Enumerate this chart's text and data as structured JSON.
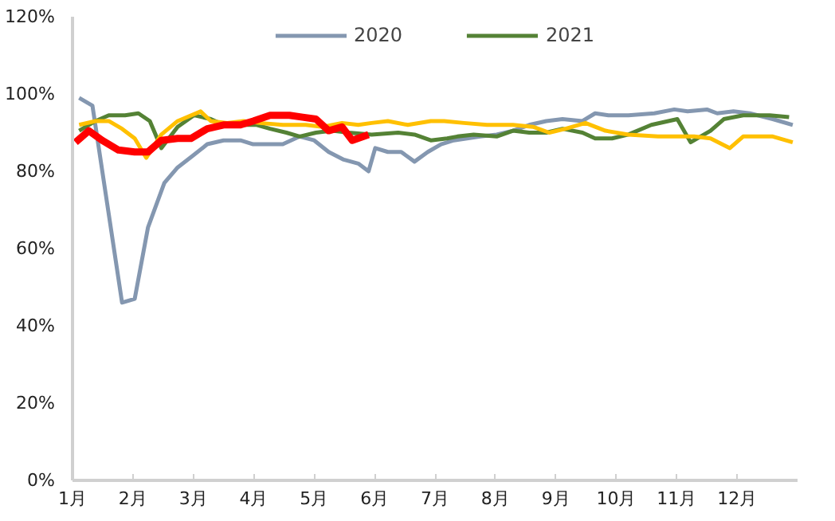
{
  "chart_data": {
    "type": "line",
    "xlim": [
      1,
      13
    ],
    "xticks": [
      {
        "value": 1,
        "label": "1月"
      },
      {
        "value": 2,
        "label": "2月"
      },
      {
        "value": 3,
        "label": "3月"
      },
      {
        "value": 4,
        "label": "4月"
      },
      {
        "value": 5,
        "label": "5月"
      },
      {
        "value": 6,
        "label": "6月"
      },
      {
        "value": 7,
        "label": "7月"
      },
      {
        "value": 8,
        "label": "8月"
      },
      {
        "value": 9,
        "label": "9月"
      },
      {
        "value": 10,
        "label": "10月"
      },
      {
        "value": 11,
        "label": "11月"
      },
      {
        "value": 12,
        "label": "12月"
      }
    ],
    "ylim": [
      0,
      120
    ],
    "yticks": [
      {
        "value": 0,
        "label": "0%"
      },
      {
        "value": 20,
        "label": "20%"
      },
      {
        "value": 40,
        "label": "40%"
      },
      {
        "value": 60,
        "label": "60%"
      },
      {
        "value": 80,
        "label": "80%"
      },
      {
        "value": 100,
        "label": "100%"
      },
      {
        "value": 120,
        "label": "120%"
      }
    ],
    "grid": false,
    "legend": "top",
    "marker": "none",
    "line_style": "solid",
    "series": [
      {
        "name": "2020",
        "color": "#8497b0",
        "x": [
          1.11,
          1.33,
          1.82,
          2.03,
          2.25,
          2.52,
          2.74,
          2.99,
          3.23,
          3.5,
          3.78,
          3.99,
          4.27,
          4.48,
          4.76,
          5.0,
          5.24,
          5.49,
          5.73,
          5.9,
          6.01,
          6.22,
          6.44,
          6.66,
          6.88,
          7.1,
          7.31,
          7.53,
          7.75,
          8.02,
          8.29,
          8.56,
          8.84,
          9.11,
          9.44,
          9.65,
          9.87,
          10.2,
          10.63,
          10.96,
          11.18,
          11.5,
          11.67,
          11.94,
          12.21,
          12.59,
          12.92
        ],
        "values": [
          99,
          97,
          46,
          47,
          65.5,
          77,
          81,
          84,
          87,
          88,
          88,
          87,
          87,
          87,
          89,
          88,
          85,
          83,
          82,
          80,
          86,
          85,
          85,
          82.5,
          85,
          87,
          88,
          88.5,
          89,
          89.5,
          90.5,
          92,
          93,
          93.5,
          93,
          95,
          94.5,
          94.5,
          95,
          96,
          95.5,
          96,
          95,
          95.5,
          95,
          93.5,
          92
        ]
      },
      {
        "name": "2021",
        "color": "#548235",
        "x": [
          1.11,
          1.38,
          1.6,
          1.87,
          2.09,
          2.28,
          2.47,
          2.74,
          3.01,
          3.29,
          3.5,
          3.78,
          4.05,
          4.27,
          4.54,
          4.76,
          5.03,
          5.3,
          5.57,
          5.95,
          6.39,
          6.66,
          6.93,
          7.2,
          7.37,
          7.64,
          8.02,
          8.29,
          8.56,
          8.84,
          9.11,
          9.44,
          9.65,
          9.93,
          10.2,
          10.58,
          11.01,
          11.23,
          11.56,
          11.78,
          12.1,
          12.54,
          12.86
        ],
        "values": [
          90.5,
          93,
          94.5,
          94.5,
          95,
          93,
          86,
          91.5,
          94.5,
          93.5,
          92,
          92,
          92,
          91,
          90,
          89,
          90,
          90.5,
          90,
          89.5,
          90,
          89.5,
          88,
          88.5,
          89,
          89.5,
          89,
          90.5,
          90,
          90,
          91,
          90,
          88.5,
          88.5,
          89.5,
          92,
          93.5,
          87.5,
          90.5,
          93.5,
          94.5,
          94.5,
          94
        ]
      },
      {
        "color": "#ffc000",
        "x": [
          1.11,
          1.38,
          1.6,
          1.82,
          2.03,
          2.22,
          2.47,
          2.74,
          3.12,
          3.29,
          3.56,
          3.83,
          4.1,
          4.48,
          4.86,
          5.14,
          5.46,
          5.73,
          5.95,
          6.22,
          6.55,
          6.93,
          7.15,
          7.48,
          7.86,
          8.29,
          8.62,
          8.89,
          9.16,
          9.49,
          9.82,
          10.2,
          10.69,
          11.01,
          11.29,
          11.56,
          11.88,
          12.1,
          12.59,
          12.92
        ],
        "values": [
          92,
          93,
          93,
          91,
          88.5,
          83.5,
          89.5,
          93,
          95.5,
          93,
          92.5,
          93,
          92.5,
          92,
          92,
          91.5,
          92.5,
          92,
          92.5,
          93,
          92,
          93,
          93,
          92.5,
          92,
          92,
          91.5,
          90,
          91,
          92.5,
          90.5,
          89.5,
          89,
          89,
          89,
          88.5,
          86,
          89,
          89,
          87.5
        ]
      },
      {
        "color": "#ff0000",
        "x": [
          1.05,
          1.27,
          1.49,
          1.76,
          2.03,
          2.25,
          2.47,
          2.74,
          2.96,
          3.23,
          3.5,
          3.78,
          3.99,
          4.27,
          4.59,
          4.81,
          5.03,
          5.24,
          5.46,
          5.63,
          5.9
        ],
        "values": [
          87.5,
          90.5,
          88,
          85.5,
          85,
          85,
          88,
          88.5,
          88.5,
          91,
          92,
          92,
          93,
          94.5,
          94.5,
          94,
          93.5,
          90.5,
          91.5,
          88,
          89.5
        ]
      }
    ]
  }
}
